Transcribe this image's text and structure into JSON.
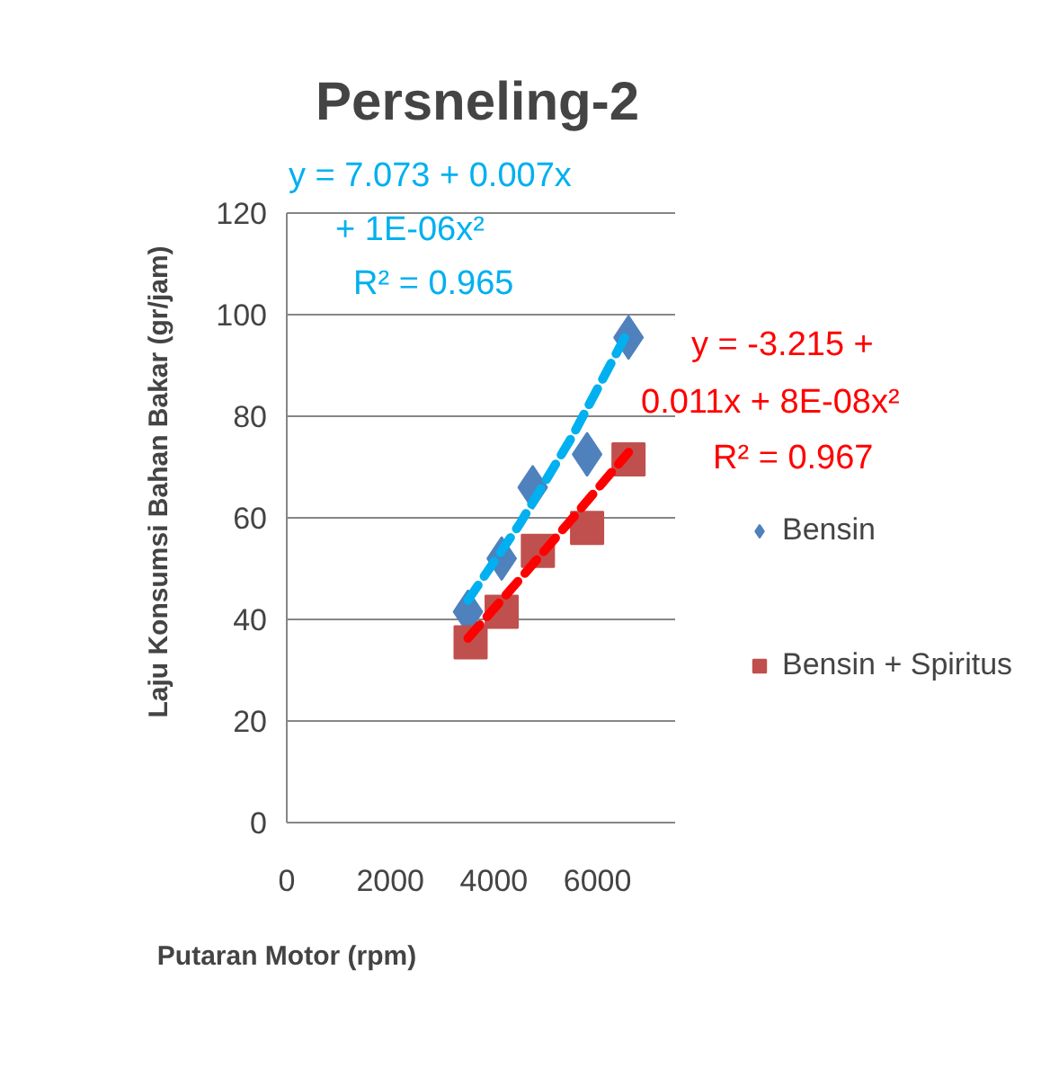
{
  "chart_data": {
    "type": "scatter",
    "title": "Persneling-2",
    "xlabel": "Putaran Motor (rpm)",
    "ylabel": "Laju Konsumsi Bahan Bakar (gr/jam)",
    "xlim": [
      0,
      7500
    ],
    "xticks": [
      0,
      2000,
      4000,
      6000
    ],
    "ylim": [
      0,
      120
    ],
    "yticks": [
      0,
      20,
      40,
      60,
      80,
      100,
      120
    ],
    "grid": "y",
    "legend": "right",
    "series": [
      {
        "name": "Bensin",
        "marker": "diamond",
        "color": "#4f81bd",
        "x": [
          3500,
          4150,
          4750,
          5800,
          6600
        ],
        "values": [
          41.5,
          52,
          66,
          72.5,
          95.5
        ]
      },
      {
        "name": "Bensin + Spiritus",
        "marker": "square",
        "color": "#c0504d",
        "x": [
          3550,
          4150,
          4850,
          5800,
          6600
        ],
        "values": [
          35.5,
          41.5,
          53.5,
          58,
          71.5
        ]
      },
      {
        "type": "line",
        "line_style": "dashed",
        "color": "#00b0f0",
        "x": [
          3500,
          4500,
          5500,
          6600
        ],
        "values": [
          43.8,
          58.8,
          75.8,
          96.9
        ]
      },
      {
        "type": "line",
        "line_style": "dashed",
        "color": "#ff0000",
        "x": [
          3500,
          4500,
          5500,
          6600
        ],
        "values": [
          36.3,
          47.9,
          59.7,
          72.9
        ]
      }
    ],
    "annotations": [
      "y = 7.073 + 0.007x",
      "+ 1E-06x²",
      "R² = 0.965",
      "y =  -3.215 +",
      "0.011x  + 8E-08x²",
      "R² = 0.967"
    ]
  }
}
